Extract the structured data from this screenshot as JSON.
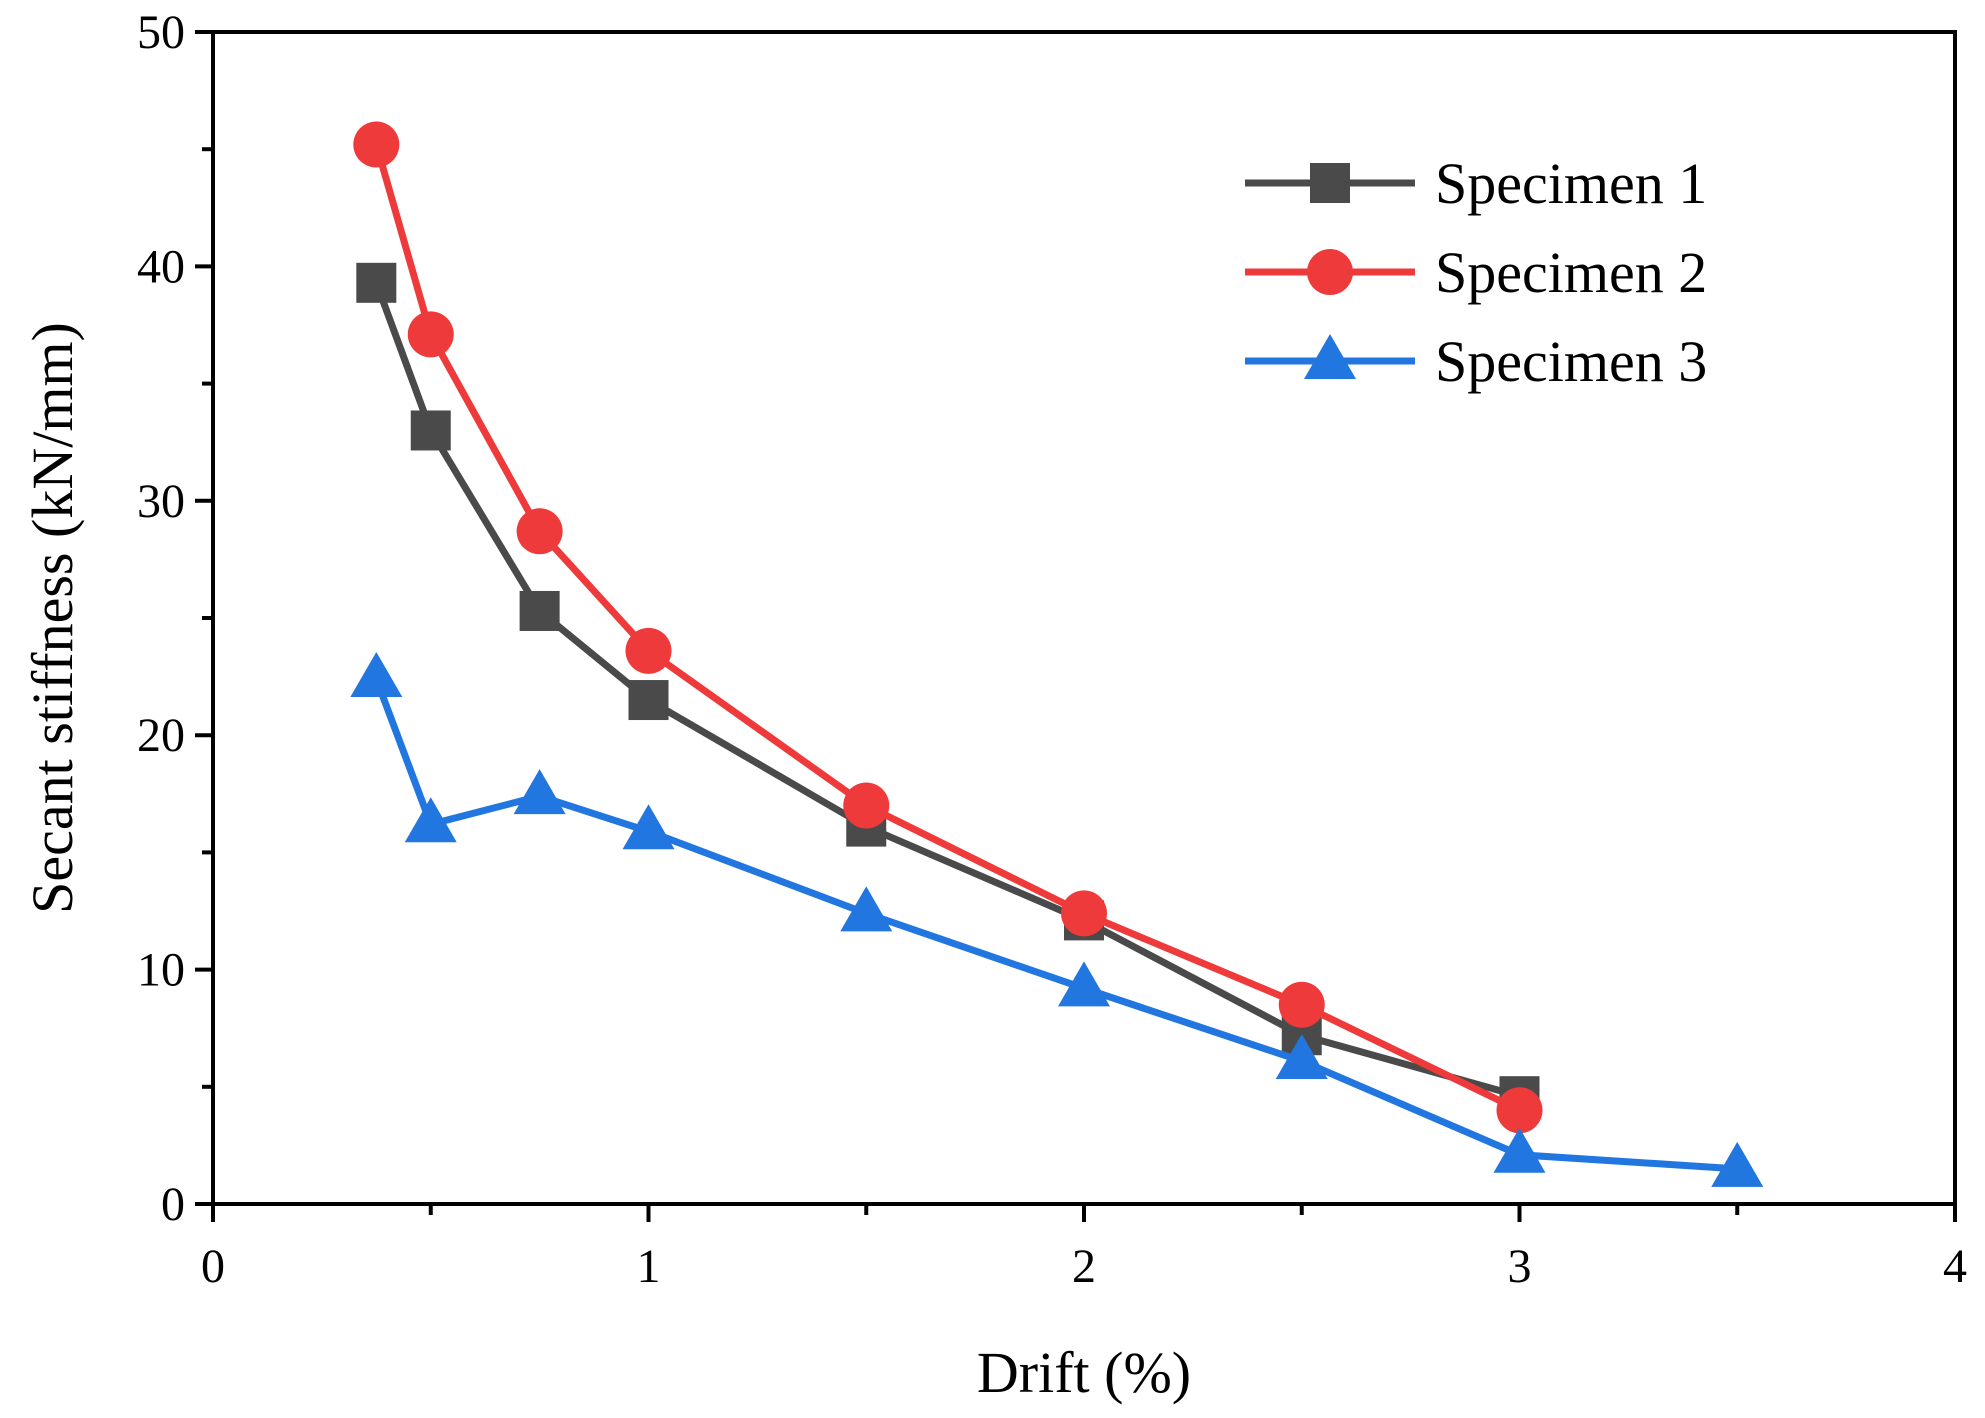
{
  "chart_data": {
    "type": "line",
    "title": "",
    "xlabel": "Drift (%)",
    "ylabel": "Secant stiffness (kN/mm)",
    "xlim": [
      0,
      4
    ],
    "ylim": [
      0,
      50
    ],
    "xticks": [
      0,
      1,
      2,
      3,
      4
    ],
    "yticks": [
      0,
      10,
      20,
      30,
      40,
      50
    ],
    "x_minor_ticks": [
      0.5,
      1.5,
      2.5,
      3.5
    ],
    "y_minor_ticks": [
      5,
      15,
      25,
      35,
      45
    ],
    "grid": false,
    "legend_position": "top-right",
    "series": [
      {
        "name": "Specimen 1",
        "color": "#4a4a4a",
        "marker": "square",
        "x": [
          0.375,
          0.5,
          0.75,
          1.0,
          1.5,
          2.0,
          2.5,
          3.0
        ],
        "y": [
          39.3,
          33.0,
          25.3,
          21.5,
          16.1,
          12.1,
          7.2,
          4.6
        ]
      },
      {
        "name": "Specimen 2",
        "color": "#ee3a3a",
        "marker": "circle",
        "x": [
          0.375,
          0.5,
          0.75,
          1.0,
          1.5,
          2.0,
          2.5,
          3.0
        ],
        "y": [
          45.2,
          37.1,
          28.7,
          23.6,
          17.0,
          12.4,
          8.5,
          4.0
        ]
      },
      {
        "name": "Specimen 3",
        "color": "#2176e0",
        "marker": "triangle",
        "x": [
          0.375,
          0.5,
          0.75,
          1.0,
          1.5,
          2.0,
          2.5,
          3.0,
          3.5
        ],
        "y": [
          22.4,
          16.2,
          17.4,
          15.9,
          12.4,
          9.2,
          6.1,
          2.1,
          1.5
        ]
      }
    ]
  }
}
